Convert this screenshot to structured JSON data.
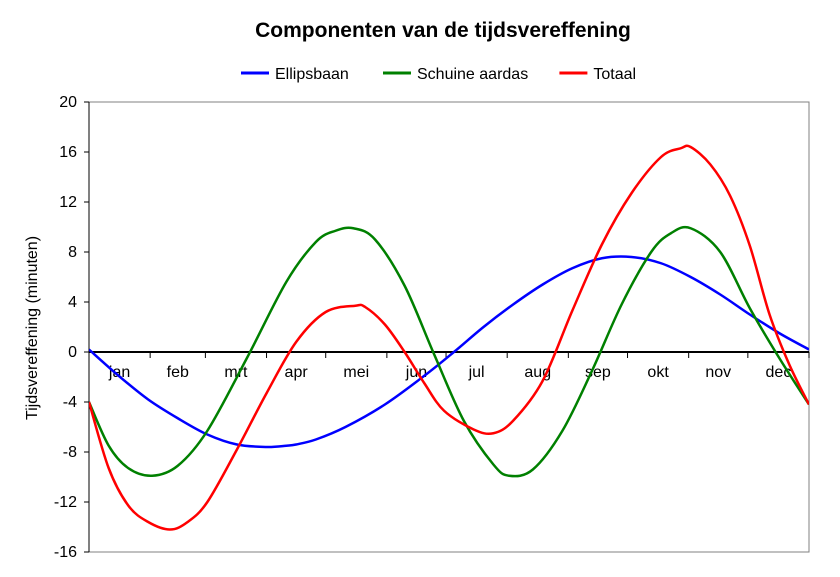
{
  "chart_data": {
    "type": "line",
    "title": "Componenten van de tijdsvereffening",
    "xlabel": "",
    "ylabel": "Tijdsvereffening (minuten)",
    "ylim": [
      -16,
      20
    ],
    "yticks": [
      20,
      16,
      12,
      8,
      4,
      0,
      -4,
      -8,
      -12,
      -16
    ],
    "xlim": [
      0,
      365
    ],
    "x_ticks_day": [
      0,
      31,
      59,
      90,
      120,
      151,
      181,
      212,
      243,
      273,
      304,
      334,
      365
    ],
    "month_labels": [
      "jan",
      "feb",
      "mrt",
      "apr",
      "mei",
      "jun",
      "jul",
      "aug",
      "sep",
      "okt",
      "nov",
      "dec"
    ],
    "month_label_day": [
      15.5,
      45,
      74.5,
      105,
      135.5,
      166,
      196.5,
      227.5,
      258,
      288.5,
      319,
      349.5
    ],
    "grid": "horizontal-dashed",
    "legend_position": "top",
    "series": [
      {
        "name": "Ellipsbaan",
        "color": "#0000ff",
        "x": [
          0,
          15,
          30,
          45,
          60,
          75,
          90,
          100,
          105,
          115,
          130,
          150,
          170,
          185,
          200,
          215,
          230,
          245,
          260,
          275,
          290,
          305,
          320,
          335,
          350,
          365
        ],
        "y": [
          0.2,
          -1.9,
          -3.8,
          -5.3,
          -6.6,
          -7.4,
          -7.6,
          -7.5,
          -7.4,
          -7.0,
          -6.0,
          -4.2,
          -1.9,
          0.0,
          2.0,
          3.8,
          5.4,
          6.7,
          7.5,
          7.6,
          7.1,
          6.0,
          4.6,
          3.0,
          1.5,
          0.2
        ]
      },
      {
        "name": "Schuine aardas",
        "color": "#008000",
        "x": [
          0,
          10,
          20,
          32,
          45,
          60,
          80,
          100,
          115,
          125,
          134,
          145,
          160,
          175,
          190,
          205,
          213,
          225,
          240,
          255,
          270,
          285,
          295,
          305,
          320,
          335,
          350,
          365
        ],
        "y": [
          -4.0,
          -7.5,
          -9.3,
          -9.9,
          -9.1,
          -6.3,
          -0.5,
          5.6,
          8.8,
          9.7,
          9.9,
          9.0,
          5.3,
          -0.2,
          -5.5,
          -9.0,
          -9.9,
          -9.4,
          -6.3,
          -1.5,
          3.8,
          8.0,
          9.5,
          9.9,
          8.0,
          3.5,
          -0.5,
          -4.2
        ]
      },
      {
        "name": "Totaal",
        "color": "#ff0000",
        "x": [
          0,
          10,
          20,
          30,
          41,
          50,
          60,
          75,
          90,
          105,
          120,
          135,
          140,
          150,
          160,
          170,
          180,
          195,
          205,
          215,
          230,
          245,
          260,
          275,
          290,
          300,
          305,
          315,
          325,
          335,
          345,
          355,
          365
        ],
        "y": [
          -4.0,
          -9.3,
          -12.3,
          -13.6,
          -14.2,
          -13.6,
          -12.0,
          -7.8,
          -3.3,
          0.8,
          3.2,
          3.7,
          3.6,
          2.2,
          0.0,
          -2.5,
          -4.7,
          -6.2,
          -6.5,
          -5.5,
          -2.3,
          3.3,
          8.6,
          12.7,
          15.6,
          16.3,
          16.4,
          15.0,
          12.5,
          8.5,
          3.0,
          -1.0,
          -4.2
        ]
      }
    ]
  }
}
